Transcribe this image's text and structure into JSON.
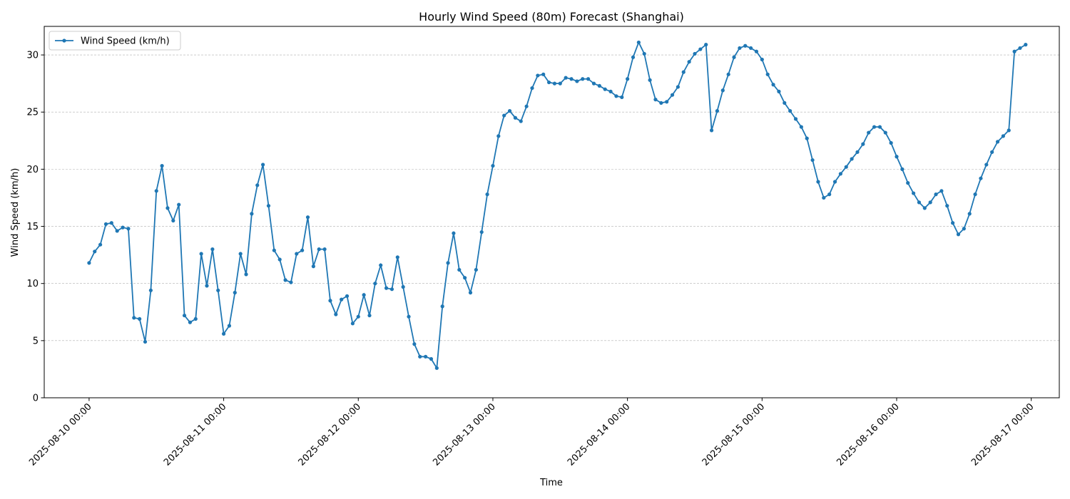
{
  "chart_data": {
    "type": "line",
    "title": "Hourly Wind Speed (80m) Forecast (Shanghai)",
    "xlabel": "Time",
    "ylabel": "Wind Speed (km/h)",
    "ylim": [
      0,
      32.5
    ],
    "yticks": [
      0,
      5,
      10,
      15,
      20,
      25,
      30
    ],
    "xlim": [
      "2025-08-09 16:00",
      "2025-08-17 05:00"
    ],
    "xticks": [
      "2025-08-10 00:00",
      "2025-08-11 00:00",
      "2025-08-12 00:00",
      "2025-08-13 00:00",
      "2025-08-14 00:00",
      "2025-08-15 00:00",
      "2025-08-16 00:00",
      "2025-08-17 00:00"
    ],
    "grid": "y-dashed",
    "legend_position": "upper-left",
    "series": [
      {
        "name": "Wind Speed (km/h)",
        "color": "#1f77b4",
        "x_start": "2025-08-10 00:00",
        "x_step": "1 hour",
        "values": [
          11.8,
          12.8,
          13.4,
          15.2,
          15.3,
          14.6,
          14.9,
          14.8,
          7.0,
          6.9,
          4.9,
          9.4,
          18.1,
          20.3,
          16.6,
          15.5,
          16.9,
          7.2,
          6.6,
          6.9,
          12.6,
          9.8,
          13.0,
          9.4,
          5.6,
          6.3,
          9.2,
          12.6,
          10.8,
          16.1,
          18.6,
          20.4,
          16.8,
          12.9,
          12.1,
          10.3,
          10.1,
          12.6,
          12.9,
          15.8,
          11.5,
          13.0,
          13.0,
          8.5,
          7.3,
          8.6,
          8.9,
          6.5,
          7.1,
          9.0,
          7.2,
          10.0,
          11.6,
          9.6,
          9.5,
          12.3,
          9.7,
          7.1,
          4.7,
          3.6,
          3.6,
          3.4,
          2.6,
          8.0,
          11.8,
          14.4,
          11.2,
          10.5,
          9.2,
          11.2,
          14.5,
          17.8,
          20.3,
          22.9,
          24.7,
          25.1,
          24.5,
          24.2,
          25.5,
          27.1,
          28.2,
          28.3,
          27.6,
          27.5,
          27.5,
          28.0,
          27.9,
          27.7,
          27.9,
          27.9,
          27.5,
          27.3,
          27.0,
          26.8,
          26.4,
          26.3,
          27.9,
          29.8,
          31.1,
          30.1,
          27.8,
          26.1,
          25.8,
          25.9,
          26.5,
          27.2,
          28.5,
          29.4,
          30.1,
          30.5,
          30.9,
          23.4,
          25.1,
          26.9,
          28.3,
          29.8,
          30.6,
          30.8,
          30.6,
          30.3,
          29.6,
          28.3,
          27.4,
          26.8,
          25.8,
          25.1,
          24.4,
          23.7,
          22.7,
          20.8,
          18.9,
          17.5,
          17.8,
          18.9,
          19.6,
          20.2,
          20.9,
          21.5,
          22.2,
          23.2,
          23.7,
          23.7,
          23.2,
          22.3,
          21.1,
          20.0,
          18.8,
          17.9,
          17.1,
          16.6,
          17.1,
          17.8,
          18.1,
          16.8,
          15.3,
          14.3,
          14.8,
          16.1,
          17.8,
          19.2,
          20.4,
          21.5,
          22.4,
          22.9,
          23.4,
          30.3,
          30.6,
          30.9
        ]
      }
    ]
  }
}
